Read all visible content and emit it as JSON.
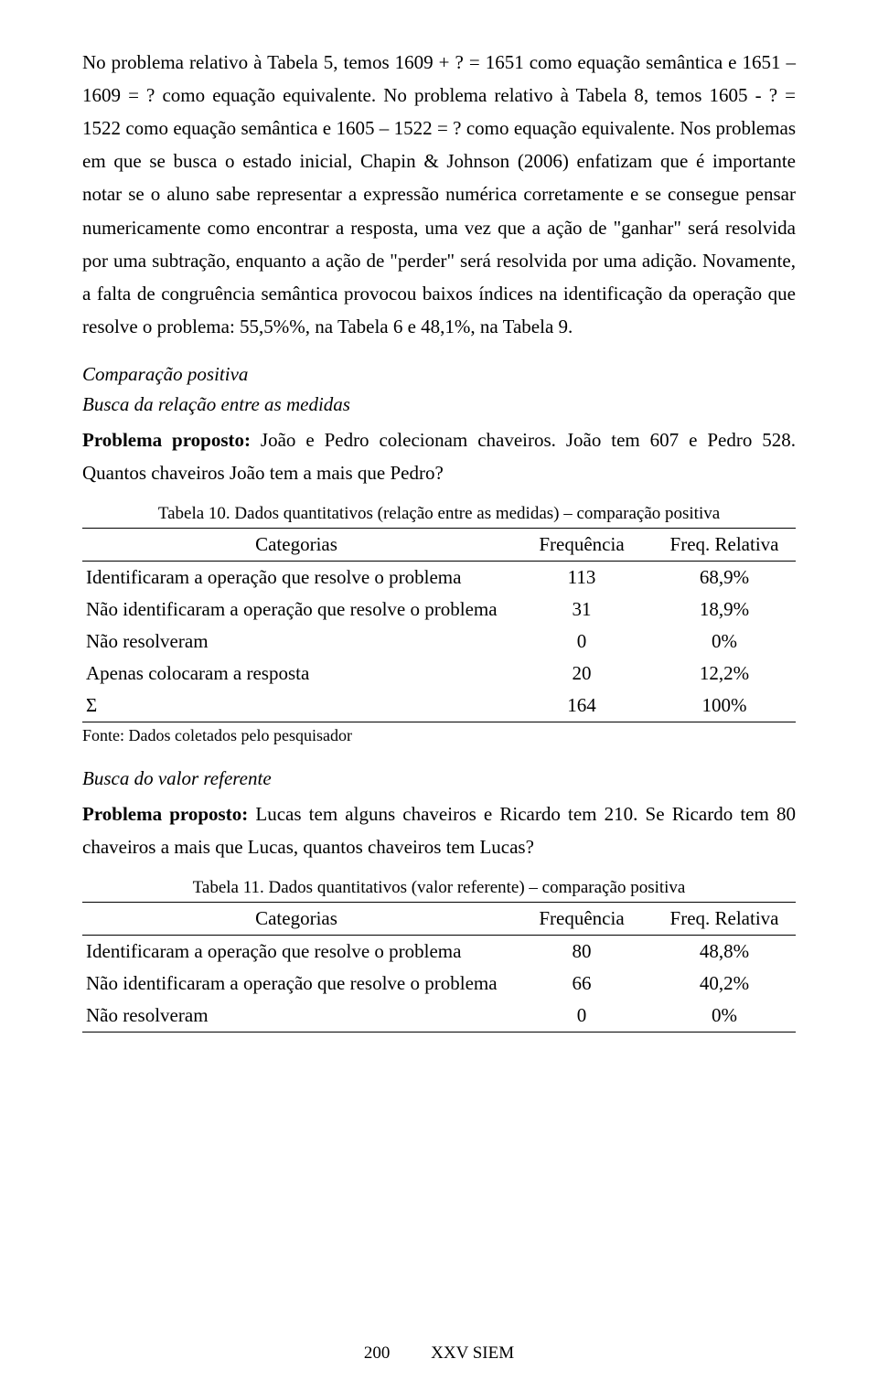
{
  "paragraph1": "No problema relativo à Tabela 5, temos 1609 + ? = 1651 como equação semântica e 1651 – 1609 = ? como equação equivalente. No problema relativo à Tabela 8, temos 1605 - ? = 1522 como equação semântica e 1605 – 1522 = ? como equação equivalente. Nos problemas em que se busca o estado inicial, Chapin & Johnson (2006) enfatizam que é importante notar se o aluno sabe representar a expressão numérica corretamente e se consegue pensar numericamente como encontrar a resposta, uma vez que a ação de \"ganhar\" será resolvida por uma subtração, enquanto a ação de \"perder\" será resolvida por uma adição. Novamente, a falta de congruência semântica provocou baixos índices na identificação da operação que resolve o problema: 55,5%%, na Tabela 6 e 48,1%, na Tabela 9.",
  "section_title": "Comparação positiva",
  "subsection1_title": "Busca da relação entre as medidas",
  "problem1_label": "Problema proposto:",
  "problem1_text": " João e Pedro colecionam chaveiros. João tem 607 e Pedro 528. Quantos chaveiros João tem a mais que Pedro?",
  "table10": {
    "caption": "Tabela 10. Dados quantitativos (relação entre as medidas) – comparação positiva",
    "headers": {
      "cat": "Categorias",
      "freq": "Frequência",
      "rel": "Freq. Relativa"
    },
    "rows": [
      {
        "label": "Identificaram a operação que resolve o problema",
        "freq": "113",
        "rel": "68,9%"
      },
      {
        "label": "Não identificaram a operação que resolve o problema",
        "freq": "31",
        "rel": "18,9%"
      },
      {
        "label": "Não resolveram",
        "freq": "0",
        "rel": "0%"
      },
      {
        "label": "Apenas colocaram a resposta",
        "freq": "20",
        "rel": "12,2%"
      },
      {
        "label": "Σ",
        "freq": "164",
        "rel": "100%"
      }
    ],
    "source": "Fonte: Dados coletados pelo pesquisador"
  },
  "subsection2_title": "Busca do valor referente",
  "problem2_label": "Problema proposto:",
  "problem2_text": " Lucas tem alguns chaveiros e Ricardo tem 210. Se Ricardo tem 80 chaveiros a mais que Lucas, quantos chaveiros tem Lucas?",
  "table11": {
    "caption": "Tabela 11. Dados quantitativos (valor referente) – comparação positiva",
    "headers": {
      "cat": "Categorias",
      "freq": "Frequência",
      "rel": "Freq. Relativa"
    },
    "rows": [
      {
        "label": "Identificaram a operação que resolve o problema",
        "freq": "80",
        "rel": "48,8%"
      },
      {
        "label": "Não identificaram a operação que resolve o problema",
        "freq": "66",
        "rel": "40,2%"
      },
      {
        "label": "Não resolveram",
        "freq": "0",
        "rel": "0%"
      }
    ]
  },
  "footer": {
    "page": "200",
    "conf": "XXV SIEM"
  }
}
